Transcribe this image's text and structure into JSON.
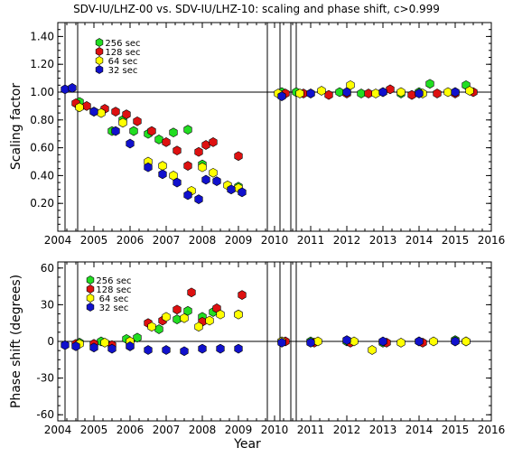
{
  "title": "SDV-IU/LHZ-00 vs. SDV-IU/LHZ-10: scaling and phase shift, c>0.999",
  "colors": {
    "256 sec": "#22dd22",
    "128 sec": "#dd1111",
    "64 sec": "#ffff00",
    "32 sec": "#1111cc"
  },
  "chart_data": [
    {
      "type": "scatter",
      "ylabel": "Scaling factor",
      "xlabel": "",
      "xlim": [
        2004,
        2016
      ],
      "ylim": [
        0.0,
        1.5
      ],
      "x_ticks": [
        "2004",
        "2005",
        "2006",
        "2007",
        "2008",
        "2009",
        "2010",
        "2011",
        "2012",
        "2013",
        "2014",
        "2015",
        "2016"
      ],
      "y_ticks": [
        "0.20",
        "0.40",
        "0.60",
        "0.80",
        "1.00",
        "1.20",
        "1.40"
      ],
      "reference_line": 1.0,
      "vertical_lines": [
        2004.2,
        2004.55,
        2009.8,
        2010.15,
        2010.45,
        2010.6
      ],
      "legend": [
        "256 sec",
        "128 sec",
        "64 sec",
        "32 sec"
      ],
      "series": [
        {
          "name": "256 sec",
          "color": "#22dd22",
          "points": [
            [
              2004.6,
              0.93
            ],
            [
              2005.0,
              0.86
            ],
            [
              2005.5,
              0.72
            ],
            [
              2005.8,
              0.8
            ],
            [
              2006.1,
              0.72
            ],
            [
              2006.5,
              0.7
            ],
            [
              2006.8,
              0.66
            ],
            [
              2007.2,
              0.71
            ],
            [
              2007.6,
              0.73
            ],
            [
              2008.0,
              0.48
            ],
            [
              2009.0,
              0.32
            ],
            [
              2010.2,
              1.0
            ],
            [
              2010.6,
              1.0
            ],
            [
              2011.0,
              0.99
            ],
            [
              2011.8,
              1.0
            ],
            [
              2012.4,
              0.99
            ],
            [
              2013.0,
              1.0
            ],
            [
              2013.5,
              0.99
            ],
            [
              2014.0,
              1.0
            ],
            [
              2014.3,
              1.06
            ],
            [
              2015.0,
              1.0
            ],
            [
              2015.3,
              1.05
            ]
          ]
        },
        {
          "name": "128 sec",
          "color": "#dd1111",
          "points": [
            [
              2004.5,
              0.92
            ],
            [
              2004.8,
              0.9
            ],
            [
              2005.3,
              0.88
            ],
            [
              2005.6,
              0.86
            ],
            [
              2005.9,
              0.84
            ],
            [
              2006.2,
              0.79
            ],
            [
              2006.6,
              0.72
            ],
            [
              2007.0,
              0.64
            ],
            [
              2007.3,
              0.58
            ],
            [
              2007.6,
              0.47
            ],
            [
              2007.9,
              0.57
            ],
            [
              2008.1,
              0.62
            ],
            [
              2008.3,
              0.64
            ],
            [
              2009.0,
              0.54
            ],
            [
              2010.3,
              0.99
            ],
            [
              2010.8,
              0.99
            ],
            [
              2011.5,
              0.98
            ],
            [
              2012.0,
              0.99
            ],
            [
              2012.6,
              0.99
            ],
            [
              2013.2,
              1.02
            ],
            [
              2013.8,
              0.98
            ],
            [
              2014.5,
              0.99
            ],
            [
              2015.0,
              0.99
            ],
            [
              2015.5,
              1.0
            ]
          ]
        },
        {
          "name": "64 sec",
          "color": "#ffff00",
          "points": [
            [
              2004.6,
              0.89
            ],
            [
              2005.2,
              0.85
            ],
            [
              2005.8,
              0.78
            ],
            [
              2006.5,
              0.5
            ],
            [
              2006.9,
              0.47
            ],
            [
              2007.2,
              0.4
            ],
            [
              2007.7,
              0.29
            ],
            [
              2008.0,
              0.46
            ],
            [
              2008.3,
              0.42
            ],
            [
              2008.7,
              0.33
            ],
            [
              2009.0,
              0.31
            ],
            [
              2010.1,
              0.99
            ],
            [
              2010.7,
              0.99
            ],
            [
              2011.3,
              1.01
            ],
            [
              2012.1,
              1.05
            ],
            [
              2012.8,
              0.99
            ],
            [
              2013.5,
              1.0
            ],
            [
              2014.1,
              0.99
            ],
            [
              2014.8,
              1.0
            ],
            [
              2015.4,
              1.01
            ]
          ]
        },
        {
          "name": "32 sec",
          "color": "#1111cc",
          "points": [
            [
              2004.2,
              1.02
            ],
            [
              2004.4,
              1.03
            ],
            [
              2005.0,
              0.86
            ],
            [
              2005.6,
              0.72
            ],
            [
              2006.0,
              0.63
            ],
            [
              2006.5,
              0.46
            ],
            [
              2006.9,
              0.41
            ],
            [
              2007.3,
              0.35
            ],
            [
              2007.6,
              0.26
            ],
            [
              2007.9,
              0.23
            ],
            [
              2008.1,
              0.37
            ],
            [
              2008.4,
              0.36
            ],
            [
              2008.8,
              0.3
            ],
            [
              2009.1,
              0.28
            ],
            [
              2010.2,
              0.97
            ],
            [
              2011.0,
              0.99
            ],
            [
              2012.0,
              1.0
            ],
            [
              2013.0,
              1.0
            ],
            [
              2014.0,
              0.99
            ],
            [
              2015.0,
              1.0
            ]
          ]
        }
      ]
    },
    {
      "type": "scatter",
      "ylabel": "Phase shift (degrees)",
      "xlabel": "Year",
      "xlim": [
        2004,
        2016
      ],
      "ylim": [
        -65,
        65
      ],
      "x_ticks": [
        "2004",
        "2005",
        "2006",
        "2007",
        "2008",
        "2009",
        "2010",
        "2011",
        "2012",
        "2013",
        "2014",
        "2015",
        "2016"
      ],
      "y_ticks": [
        "-60",
        "-30",
        "0",
        "30",
        "60"
      ],
      "reference_line": 0,
      "vertical_lines": [
        2004.2,
        2004.55,
        2009.8,
        2010.15,
        2010.45,
        2010.6
      ],
      "legend": [
        "256 sec",
        "128 sec",
        "64 sec",
        "32 sec"
      ],
      "series": [
        {
          "name": "256 sec",
          "color": "#22dd22",
          "points": [
            [
              2004.6,
              -1
            ],
            [
              2005.2,
              0
            ],
            [
              2005.9,
              2
            ],
            [
              2006.2,
              3
            ],
            [
              2006.8,
              10
            ],
            [
              2007.3,
              18
            ],
            [
              2007.6,
              25
            ],
            [
              2008.0,
              20
            ],
            [
              2008.3,
              24
            ],
            [
              2009.0,
              22
            ],
            [
              2010.2,
              0
            ],
            [
              2011.0,
              0
            ],
            [
              2012.0,
              0
            ],
            [
              2013.0,
              -1
            ],
            [
              2014.0,
              0
            ],
            [
              2015.0,
              1
            ],
            [
              2015.3,
              0
            ]
          ]
        },
        {
          "name": "128 sec",
          "color": "#dd1111",
          "points": [
            [
              2004.5,
              -2
            ],
            [
              2005.0,
              -2
            ],
            [
              2005.5,
              -3
            ],
            [
              2006.0,
              -4
            ],
            [
              2006.5,
              15
            ],
            [
              2006.9,
              17
            ],
            [
              2007.3,
              26
            ],
            [
              2007.7,
              40
            ],
            [
              2008.0,
              16
            ],
            [
              2008.4,
              27
            ],
            [
              2009.1,
              38
            ],
            [
              2010.3,
              0
            ],
            [
              2011.1,
              -1
            ],
            [
              2012.1,
              -1
            ],
            [
              2013.1,
              -1
            ],
            [
              2014.1,
              -1
            ],
            [
              2015.0,
              0
            ]
          ]
        },
        {
          "name": "64 sec",
          "color": "#ffff00",
          "points": [
            [
              2004.6,
              -2
            ],
            [
              2005.3,
              -1
            ],
            [
              2006.0,
              0
            ],
            [
              2006.6,
              12
            ],
            [
              2007.0,
              20
            ],
            [
              2007.5,
              19
            ],
            [
              2007.9,
              12
            ],
            [
              2008.2,
              17
            ],
            [
              2008.5,
              22
            ],
            [
              2009.0,
              22
            ],
            [
              2010.2,
              0
            ],
            [
              2011.2,
              0
            ],
            [
              2012.2,
              0
            ],
            [
              2012.7,
              -7
            ],
            [
              2013.5,
              -1
            ],
            [
              2014.4,
              0
            ],
            [
              2015.3,
              0
            ]
          ]
        },
        {
          "name": "32 sec",
          "color": "#1111cc",
          "points": [
            [
              2004.2,
              -3
            ],
            [
              2004.5,
              -4
            ],
            [
              2005.0,
              -5
            ],
            [
              2005.5,
              -6
            ],
            [
              2006.0,
              -4
            ],
            [
              2006.5,
              -7
            ],
            [
              2007.0,
              -7
            ],
            [
              2007.5,
              -8
            ],
            [
              2008.0,
              -6
            ],
            [
              2008.5,
              -6
            ],
            [
              2009.0,
              -6
            ],
            [
              2010.2,
              -1
            ],
            [
              2011.0,
              -1
            ],
            [
              2012.0,
              1
            ],
            [
              2013.0,
              0
            ],
            [
              2014.0,
              0
            ],
            [
              2015.0,
              0
            ]
          ]
        }
      ]
    }
  ]
}
